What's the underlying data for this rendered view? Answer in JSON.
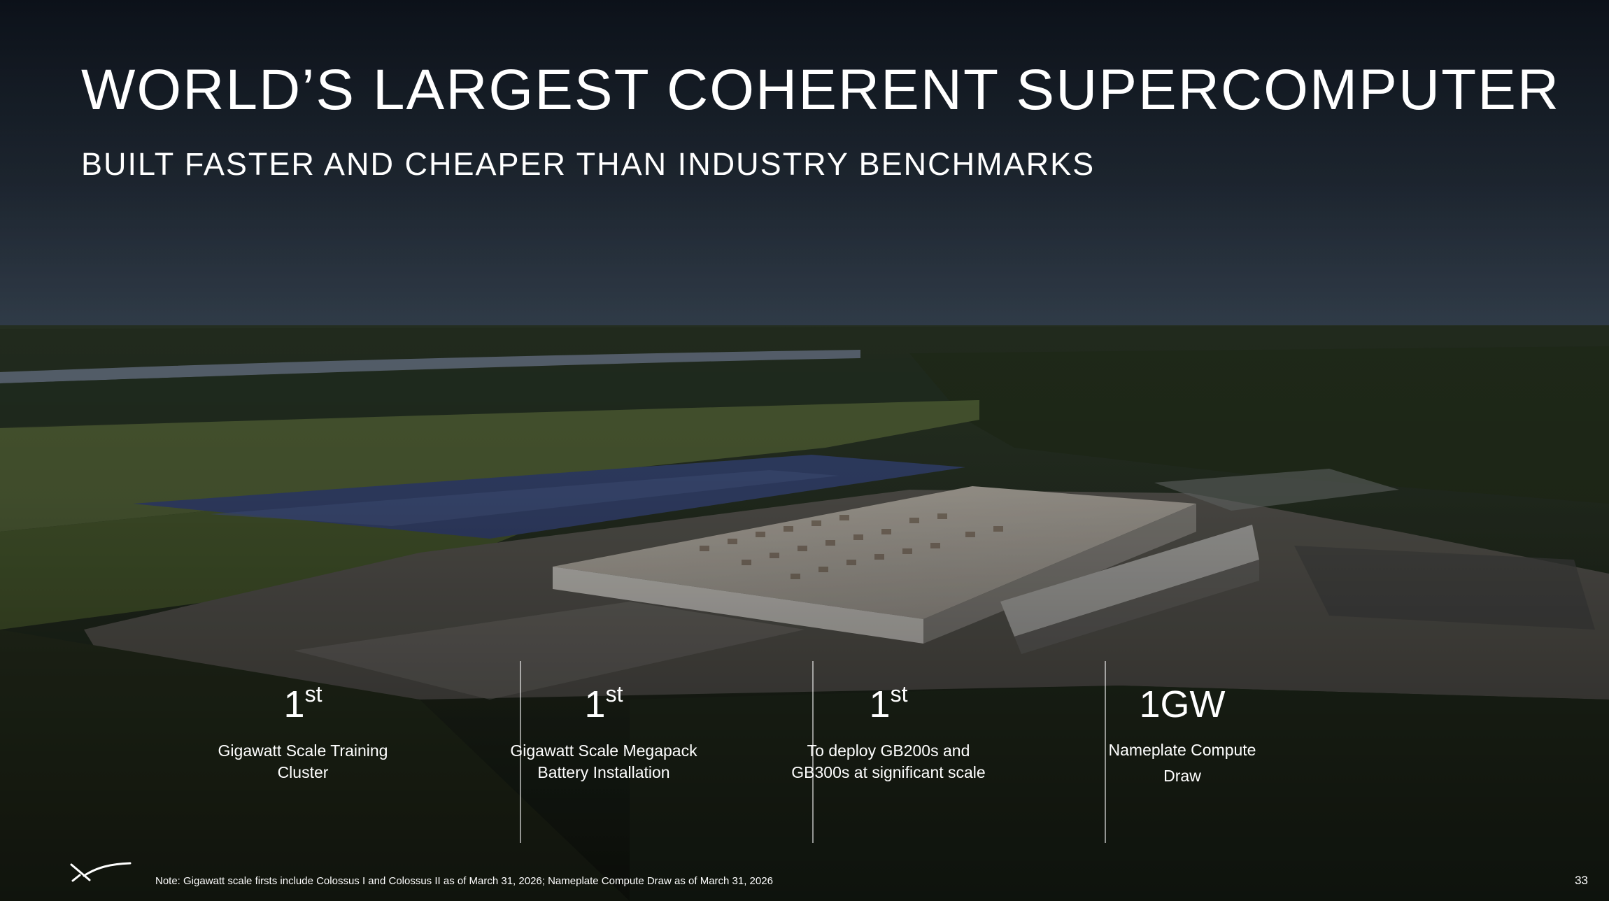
{
  "slide": {
    "title": "WORLD’S LARGEST COHERENT SUPERCOMPUTER",
    "subtitle": "BUILT FASTER AND CHEAPER THAN INDUSTRY BENCHMARKS",
    "stats": [
      {
        "value": "1",
        "suffix": "st",
        "label": "Gigawatt Scale Training Cluster"
      },
      {
        "value": "1",
        "suffix": "st",
        "label": "Gigawatt Scale Megapack Battery Installation"
      },
      {
        "value": "1",
        "suffix": "st",
        "label": "To deploy GB200s and GB300s at significant scale"
      },
      {
        "value": "1GW",
        "suffix": "",
        "label": "Nameplate Compute Draw"
      }
    ],
    "footnote": "Note: Gigawatt scale firsts include Colossus I and Colossus II as of March 31, 2026; Nameplate Compute Draw as of March 31, 2026",
    "page_number": "33"
  },
  "colors": {
    "sky_top": "#111822",
    "sky_horizon": "#3c4a5a",
    "text": "#ffffff",
    "field_green": "#4d6234",
    "roof": "#bdb7ae",
    "solar": "#3a4a78"
  },
  "icons": {
    "logo": "x-logo-icon"
  }
}
